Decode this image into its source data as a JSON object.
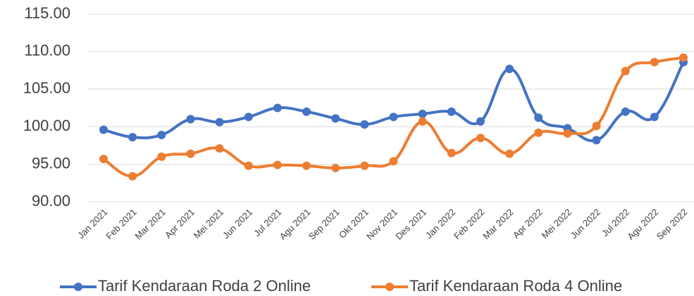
{
  "chart_data": {
    "type": "line",
    "categories": [
      "Jan 2021",
      "Feb 2021",
      "Mar 2021",
      "Apr 2021",
      "Mei 2021",
      "Jun 2021",
      "Jul 2021",
      "Agu 2021",
      "Sep 2021",
      "Okt 2021",
      "Nov 2021",
      "Des 2021",
      "Jan 2022",
      "Feb 2022",
      "Mar 2022",
      "Apr 2022",
      "Mei 2022",
      "Jun 2022",
      "Jul 2022",
      "Agu 2022",
      "Sep 2022"
    ],
    "series": [
      {
        "name": "Tarif Kendaraan Roda 2 Online",
        "color": "#4472c4",
        "values": [
          99.6,
          98.6,
          98.9,
          101.0,
          100.6,
          101.3,
          102.5,
          102.0,
          101.1,
          100.3,
          101.3,
          101.7,
          102.0,
          100.7,
          107.7,
          101.2,
          99.8,
          98.2,
          102.0,
          101.3,
          108.6
        ]
      },
      {
        "name": "Tarif Kendaraan Roda 4 Online",
        "color": "#ed7d31",
        "values": [
          95.7,
          93.4,
          96.0,
          96.4,
          97.1,
          94.8,
          94.9,
          94.8,
          94.5,
          94.8,
          95.4,
          100.7,
          96.5,
          98.5,
          96.4,
          99.2,
          99.1,
          100.1,
          107.4,
          108.6,
          109.2
        ]
      }
    ],
    "ylim": [
      90,
      115
    ],
    "yticks": [
      {
        "value": 90,
        "label": "90.00"
      },
      {
        "value": 95,
        "label": "95.00"
      },
      {
        "value": 100,
        "label": "100.00"
      },
      {
        "value": 105,
        "label": "105.00"
      },
      {
        "value": 110,
        "label": "110.00"
      },
      {
        "value": 115,
        "label": "115.00"
      }
    ],
    "grid": true,
    "legend": "bottom"
  }
}
